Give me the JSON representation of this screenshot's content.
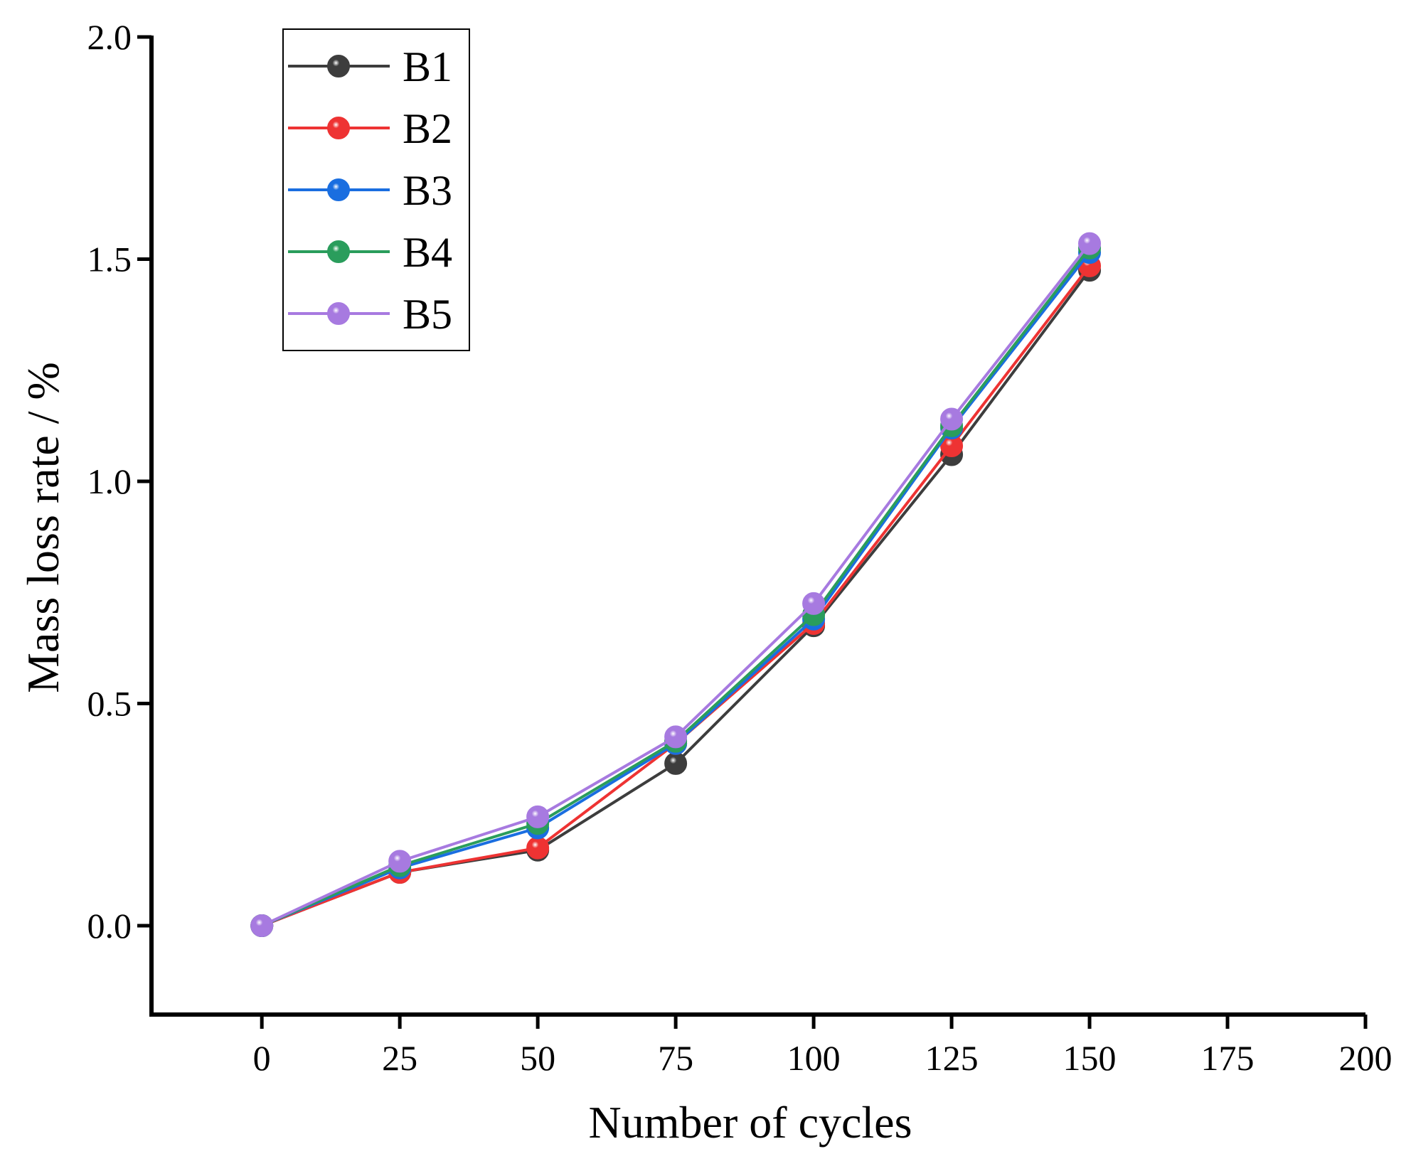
{
  "chart_data": {
    "type": "line",
    "title": "",
    "xlabel": "Number of cycles",
    "ylabel": "Mass loss rate / %",
    "xlim": [
      -20,
      200
    ],
    "ylim": [
      -0.2,
      2.0
    ],
    "xticks": [
      0,
      25,
      50,
      75,
      100,
      125,
      150,
      175,
      200
    ],
    "xtick_labels": [
      "0",
      "25",
      "50",
      "75",
      "100",
      "125",
      "150",
      "175",
      "200"
    ],
    "yticks": [
      0.0,
      0.5,
      1.0,
      1.5,
      2.0
    ],
    "ytick_labels": [
      "0.0",
      "0.5",
      "1.0",
      "1.5",
      "2.0"
    ],
    "grid": false,
    "legend_position": "top-left",
    "x": [
      0,
      25,
      50,
      75,
      100,
      125,
      150
    ],
    "series": [
      {
        "name": "B1",
        "color": "#3d3d3d",
        "values": [
          0.0,
          0.12,
          0.17,
          0.365,
          0.675,
          1.06,
          1.475
        ]
      },
      {
        "name": "B2",
        "color": "#ee3333",
        "values": [
          0.0,
          0.12,
          0.175,
          0.41,
          0.68,
          1.08,
          1.485
        ]
      },
      {
        "name": "B3",
        "color": "#1a6ee0",
        "values": [
          0.0,
          0.13,
          0.22,
          0.41,
          0.69,
          1.12,
          1.515
        ]
      },
      {
        "name": "B4",
        "color": "#2a9d5c",
        "values": [
          0.0,
          0.135,
          0.23,
          0.415,
          0.7,
          1.125,
          1.525
        ]
      },
      {
        "name": "B5",
        "color": "#a77ae0",
        "values": [
          0.0,
          0.145,
          0.245,
          0.425,
          0.725,
          1.14,
          1.535
        ]
      }
    ]
  }
}
